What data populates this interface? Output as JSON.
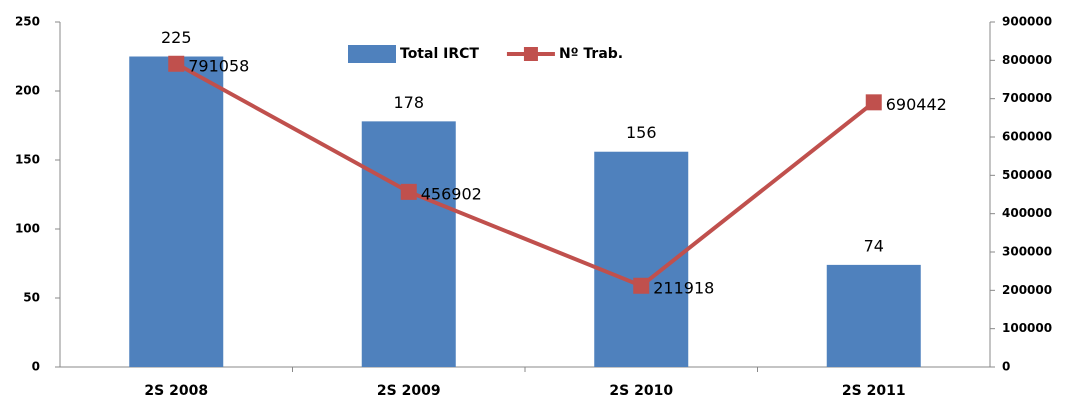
{
  "chart_data": {
    "type": "bar-line",
    "categories": [
      "2S 2008",
      "2S 2009",
      "2S 2010",
      "2S 2011"
    ],
    "series": [
      {
        "name": "Total IRCT",
        "type": "bar",
        "color": "#4f81bd",
        "values": [
          225,
          178,
          156,
          74
        ]
      },
      {
        "name": "Nº Trab.",
        "type": "line",
        "color": "#c0504d",
        "axis": "y2",
        "values": [
          791058,
          456902,
          211918,
          690442
        ]
      }
    ],
    "ylim": [
      0,
      250
    ],
    "yticks": [
      0,
      50,
      100,
      150,
      200,
      250
    ],
    "y2lim": [
      0,
      900000
    ],
    "y2ticks": [
      0,
      100000,
      200000,
      300000,
      400000,
      500000,
      600000,
      700000,
      800000,
      900000
    ],
    "legend": "top",
    "data_labels": true
  }
}
